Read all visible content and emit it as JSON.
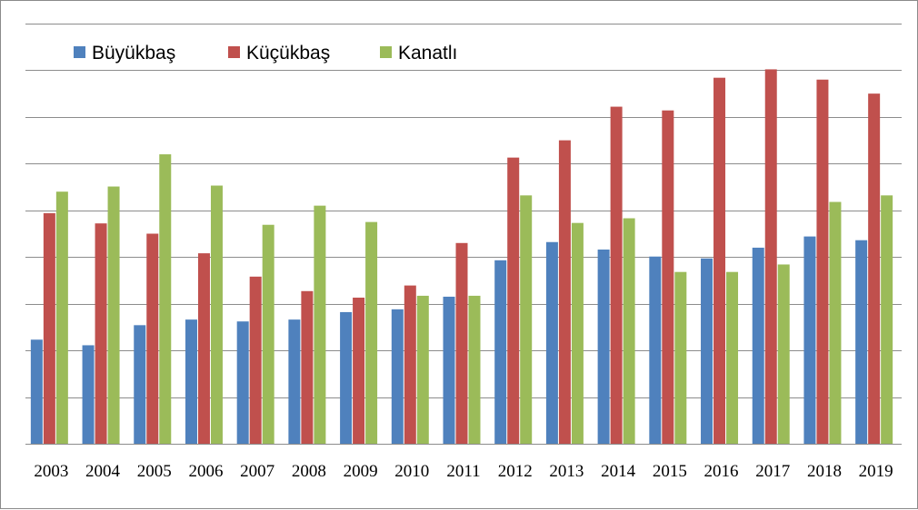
{
  "chart_data": {
    "type": "bar",
    "title": "",
    "xlabel": "",
    "ylabel": "",
    "categories": [
      "2003",
      "2004",
      "2005",
      "2006",
      "2007",
      "2008",
      "2009",
      "2010",
      "2011",
      "2012",
      "2013",
      "2014",
      "2015",
      "2016",
      "2017",
      "2018",
      "2019"
    ],
    "ylim": [
      0,
      9
    ],
    "y_tick_labels_shown": false,
    "grid": true,
    "legend_position": "top-left",
    "series": [
      {
        "name": "Büyükbaş",
        "color": "#4f81bd",
        "values": [
          2.23,
          2.11,
          2.54,
          2.66,
          2.62,
          2.66,
          2.82,
          2.88,
          3.15,
          3.93,
          4.32,
          4.16,
          4.01,
          3.97,
          4.2,
          4.44,
          4.36
        ]
      },
      {
        "name": "Küçükbaş",
        "color": "#c0504d",
        "values": [
          4.94,
          4.72,
          4.5,
          4.08,
          3.58,
          3.27,
          3.13,
          3.39,
          4.3,
          6.13,
          6.5,
          7.22,
          7.14,
          7.84,
          8.02,
          7.8,
          7.5
        ]
      },
      {
        "name": "Kanatlı",
        "color": "#9bbb59",
        "values": [
          5.4,
          5.51,
          6.2,
          5.53,
          4.69,
          5.1,
          4.75,
          3.17,
          3.17,
          5.32,
          4.73,
          4.83,
          3.68,
          3.68,
          3.84,
          5.18,
          5.32
        ]
      }
    ]
  }
}
